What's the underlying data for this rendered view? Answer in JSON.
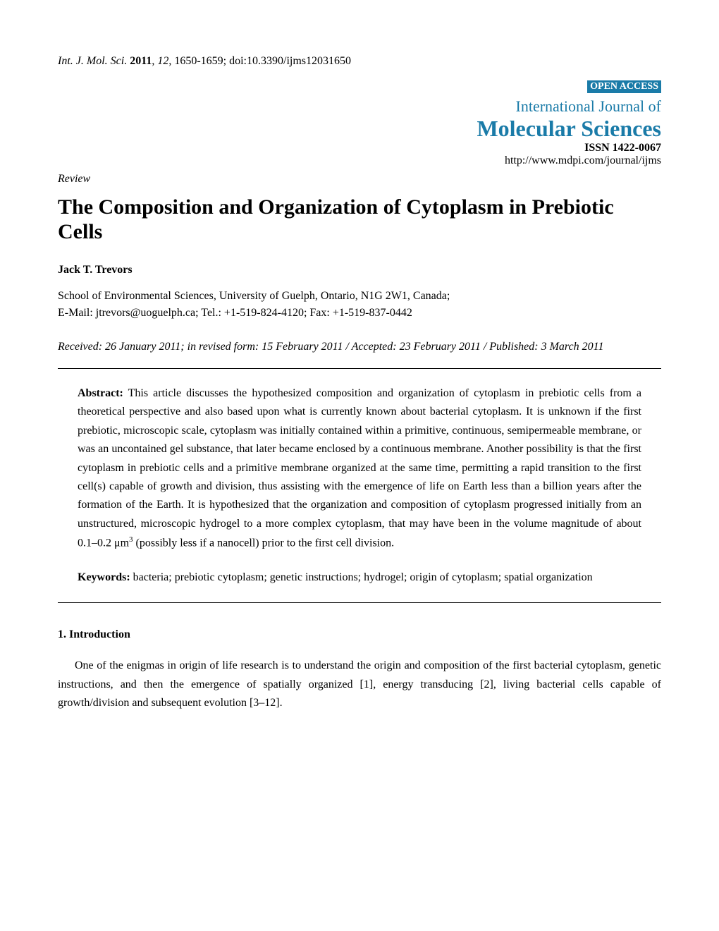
{
  "header": {
    "journal_abbrev": "Int. J. Mol. Sci.",
    "year": "2011",
    "volume": "12",
    "pages": "1650-1659",
    "doi": "doi:10.3390/ijms12031650",
    "open_access": "OPEN ACCESS",
    "journal_prefix": "International Journal of",
    "journal_title": "Molecular Sciences",
    "issn": "ISSN 1422-0067",
    "url": "http://www.mdpi.com/journal/ijms"
  },
  "article": {
    "type": "Review",
    "title": "The Composition and Organization of Cytoplasm in Prebiotic Cells",
    "author": "Jack T. Trevors",
    "affiliation_line1": "School of Environmental Sciences, University of Guelph, Ontario, N1G 2W1, Canada;",
    "affiliation_line2": "E-Mail: jtrevors@uoguelph.ca; Tel.: +1-519-824-4120; Fax: +1-519-837-0442",
    "dates": "Received: 26 January 2011; in revised form: 15 February 2011 / Accepted: 23 February 2011 / Published: 3 March 2011"
  },
  "abstract": {
    "label": "Abstract:",
    "text_part1": " This article discusses the hypothesized composition and organization of cytoplasm in prebiotic cells from a theoretical perspective and also based upon what is currently known about bacterial cytoplasm. It is unknown if the first prebiotic, microscopic scale, cytoplasm was initially contained within a primitive, continuous, semipermeable membrane, or was an uncontained gel substance, that later became enclosed by a continuous membrane. Another possibility is that the first cytoplasm in prebiotic cells and a primitive membrane organized at the same time, permitting a rapid transition to the first cell(s) capable of growth and division, thus assisting with the emergence of life on Earth less than a billion years after the formation of the Earth. It is hypothesized that the organization and composition of cytoplasm progressed initially from an unstructured, microscopic hydrogel to a more complex cytoplasm, that may have been in the volume magnitude of about 0.1–0.2 μm",
    "superscript": "3",
    "text_part2": " (possibly less if a nanocell) prior to the first cell division."
  },
  "keywords": {
    "label": "Keywords:",
    "text": " bacteria; prebiotic cytoplasm; genetic instructions; hydrogel; origin of cytoplasm; spatial organization"
  },
  "body": {
    "section_heading": "1. Introduction",
    "paragraph1": "One of the enigmas in origin of life research is to understand the origin and composition of the first bacterial cytoplasm, genetic instructions, and then the emergence of spatially organized [1], energy transducing [2], living bacterial cells capable of growth/division and subsequent evolution [3–12]."
  },
  "colors": {
    "link_color": "#1a7ba8",
    "text_color": "#000000",
    "badge_bg": "#1a7ba8",
    "badge_text": "#ffffff",
    "page_bg": "#ffffff"
  },
  "typography": {
    "body_fontsize": 16,
    "title_fontsize": 30,
    "journal_title_fontsize": 32,
    "journal_prefix_fontsize": 22,
    "line_height": 1.65
  }
}
